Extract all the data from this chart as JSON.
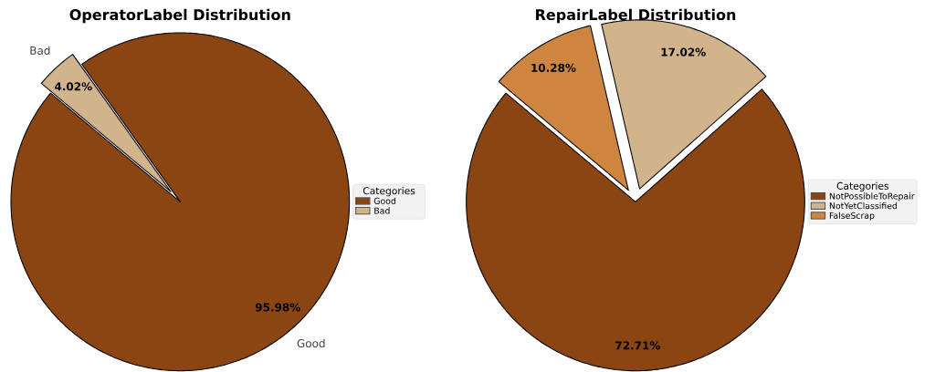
{
  "chart_data": [
    {
      "type": "pie",
      "title": "OperatorLabel Distribution",
      "categories": [
        "Good",
        "Bad"
      ],
      "values": [
        95.98,
        4.02
      ],
      "colors": [
        "#8b4513",
        "#d2b48c"
      ],
      "value_labels": [
        "95.98%",
        "4.02%"
      ],
      "annotations": [
        "Good",
        "Bad"
      ],
      "legend_title": "Categories",
      "legend": "right"
    },
    {
      "type": "pie",
      "title": "RepairLabel Distribution",
      "categories": [
        "NotPossibleToRepair",
        "NotYetClassified",
        "FalseScrap"
      ],
      "values": [
        72.71,
        17.02,
        10.28
      ],
      "colors": [
        "#8b4513",
        "#d2b48c",
        "#cd853f"
      ],
      "value_labels": [
        "72.71%",
        "17.02%",
        "10.28%"
      ],
      "legend_title": "Categories",
      "legend": "right"
    }
  ]
}
